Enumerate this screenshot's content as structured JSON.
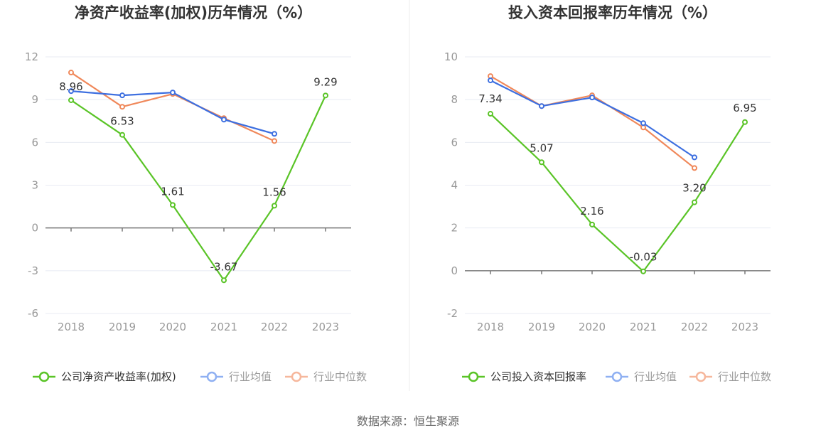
{
  "colors": {
    "company": "#5ac427",
    "avg": "#3d6fe0",
    "median": "#f0885a",
    "legend_avg": "#8fb0f2",
    "legend_median": "#f6b79c"
  },
  "footer": {
    "source": "数据来源：恒生聚源"
  },
  "chart_data": [
    {
      "type": "line",
      "title": "净资产收益率(加权)历年情况（%）",
      "categories": [
        "2018",
        "2019",
        "2020",
        "2021",
        "2022",
        "2023"
      ],
      "ylim": [
        -6,
        12
      ],
      "yticks": [
        "12",
        "9",
        "6",
        "3",
        "0",
        "-3",
        "-6"
      ],
      "grid": true,
      "legend_position": "bottom",
      "series": [
        {
          "name": "公司净资产收益率(加权)",
          "key": "company",
          "values": [
            8.96,
            6.53,
            1.61,
            -3.67,
            1.56,
            9.29
          ],
          "labels": [
            "8.96",
            "6.53",
            "1.61",
            "-3.67",
            "1.56",
            "9.29"
          ]
        },
        {
          "name": "行业均值",
          "key": "avg",
          "values": [
            9.6,
            9.3,
            9.5,
            7.6,
            6.6,
            null
          ]
        },
        {
          "name": "行业中位数",
          "key": "median",
          "values": [
            10.9,
            8.5,
            9.4,
            7.7,
            6.1,
            null
          ]
        }
      ]
    },
    {
      "type": "line",
      "title": "投入资本回报率历年情况（%）",
      "categories": [
        "2018",
        "2019",
        "2020",
        "2021",
        "2022",
        "2023"
      ],
      "ylim": [
        -2,
        10
      ],
      "yticks": [
        "10",
        "8",
        "6",
        "4",
        "2",
        "0",
        "-2"
      ],
      "grid": true,
      "legend_position": "bottom",
      "series": [
        {
          "name": "公司投入资本回报率",
          "key": "company",
          "values": [
            7.34,
            5.07,
            2.16,
            -0.03,
            3.2,
            6.95
          ],
          "labels": [
            "7.34",
            "5.07",
            "2.16",
            "-0.03",
            "3.20",
            "6.95"
          ]
        },
        {
          "name": "行业均值",
          "key": "avg",
          "values": [
            8.9,
            7.7,
            8.1,
            6.9,
            5.3,
            null
          ]
        },
        {
          "name": "行业中位数",
          "key": "median",
          "values": [
            9.1,
            7.7,
            8.2,
            6.7,
            4.8,
            null
          ]
        }
      ]
    }
  ]
}
